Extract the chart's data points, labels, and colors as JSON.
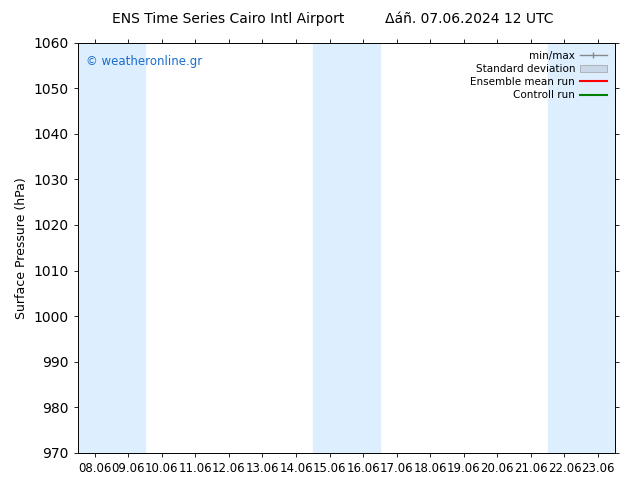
{
  "title_left": "ENS Time Series Cairo Intl Airport",
  "title_right": "Δáñ. 07.06.2024 12 UTC",
  "ylabel": "Surface Pressure (hPa)",
  "ylim": [
    970,
    1060
  ],
  "yticks": [
    970,
    980,
    990,
    1000,
    1010,
    1020,
    1030,
    1040,
    1050,
    1060
  ],
  "xtick_labels": [
    "08.06",
    "09.06",
    "10.06",
    "11.06",
    "12.06",
    "13.06",
    "14.06",
    "15.06",
    "16.06",
    "17.06",
    "18.06",
    "19.06",
    "20.06",
    "21.06",
    "22.06",
    "23.06"
  ],
  "shaded_color": "#ddeeff",
  "background_color": "#ffffff",
  "watermark_text": "© weatheronline.gr",
  "watermark_color": "#1a6dcc",
  "legend_labels": [
    "min/max",
    "Standard deviation",
    "Ensemble mean run",
    "Controll run"
  ],
  "legend_colors_line": [
    "#888888",
    "#bbbbbb",
    "#ff0000",
    "#008000"
  ],
  "title_fontsize": 10,
  "tick_fontsize": 8.5,
  "ylabel_fontsize": 9
}
